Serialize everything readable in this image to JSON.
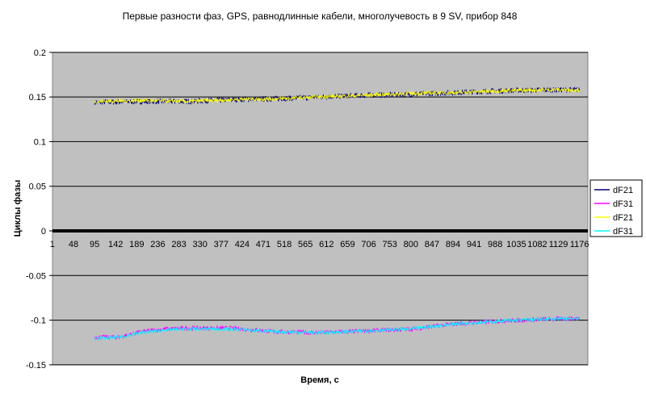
{
  "chart_data": {
    "type": "line",
    "title": "Первые разности фаз, GPS, равнодлинные кабели, многолучевость в 9 SV, прибор 848",
    "xlabel": "Время, с",
    "ylabel": "Циклы фазы",
    "ylim": [
      -0.15,
      0.2
    ],
    "yticks": [
      "0.2",
      "0.15",
      "0.1",
      "0.05",
      "0",
      "-0.05",
      "-0.1",
      "-0.15"
    ],
    "ytick_values": [
      0.2,
      0.15,
      0.1,
      0.05,
      0,
      -0.05,
      -0.1,
      -0.15
    ],
    "xticks": [
      "1",
      "48",
      "95",
      "142",
      "189",
      "236",
      "283",
      "330",
      "377",
      "424",
      "471",
      "518",
      "565",
      "612",
      "659",
      "706",
      "753",
      "800",
      "847",
      "894",
      "941",
      "988",
      "1035",
      "1082",
      "1129",
      "1176"
    ],
    "grid": true,
    "legend_position": "right",
    "series": [
      {
        "name": "dF21",
        "color": "#000080",
        "noise": 0.003,
        "x": [
          95,
          200,
          300,
          400,
          500,
          600,
          700,
          800,
          900,
          1000,
          1100,
          1176
        ],
        "y": [
          0.144,
          0.145,
          0.145,
          0.147,
          0.148,
          0.15,
          0.152,
          0.153,
          0.155,
          0.157,
          0.158,
          0.158
        ]
      },
      {
        "name": "dF31",
        "color": "#ff00ff",
        "noise": 0.0025,
        "x": [
          95,
          150,
          200,
          250,
          300,
          400,
          500,
          600,
          700,
          800,
          850,
          900,
          1000,
          1100,
          1176
        ],
        "y": [
          -0.119,
          -0.119,
          -0.113,
          -0.11,
          -0.109,
          -0.109,
          -0.113,
          -0.114,
          -0.112,
          -0.11,
          -0.107,
          -0.104,
          -0.101,
          -0.099,
          -0.098
        ]
      },
      {
        "name": "dF21",
        "color": "#ffff00",
        "noise": 0.0022,
        "x": [
          95,
          200,
          300,
          400,
          500,
          600,
          700,
          800,
          900,
          1000,
          1100,
          1176
        ],
        "y": [
          0.145,
          0.146,
          0.145,
          0.147,
          0.148,
          0.15,
          0.152,
          0.154,
          0.155,
          0.157,
          0.158,
          0.158
        ]
      },
      {
        "name": "dF31",
        "color": "#00ffff",
        "noise": 0.002,
        "x": [
          95,
          150,
          200,
          250,
          300,
          400,
          500,
          600,
          700,
          800,
          850,
          900,
          1000,
          1100,
          1176
        ],
        "y": [
          -0.121,
          -0.119,
          -0.114,
          -0.111,
          -0.11,
          -0.11,
          -0.113,
          -0.114,
          -0.112,
          -0.11,
          -0.107,
          -0.104,
          -0.101,
          -0.099,
          -0.098
        ]
      }
    ]
  }
}
